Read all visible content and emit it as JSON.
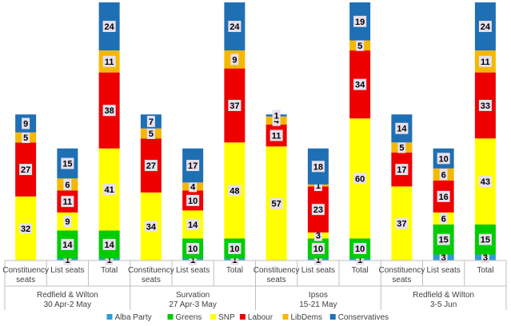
{
  "chart_data": {
    "type": "bar",
    "stacked": true,
    "groups": [
      {
        "pollster": "Redfield & Wilton",
        "dates": "30 Apr-2 May"
      },
      {
        "pollster": "Survation",
        "dates": "27 Apr-3 May"
      },
      {
        "pollster": "Ipsos",
        "dates": "15-21 May"
      },
      {
        "pollster": "Redfield & Wilton",
        "dates": "3-5 Jun"
      }
    ],
    "categories": [
      "Constituency seats",
      "List seats",
      "Total"
    ],
    "category_lines": [
      [
        "Constituency",
        "seats"
      ],
      [
        "List seats"
      ],
      [
        "Total"
      ]
    ],
    "series": [
      {
        "name": "Alba Party",
        "color": "#2E9BD6",
        "values": [
          [
            0,
            1,
            1
          ],
          [
            0,
            1,
            1
          ],
          [
            0,
            1,
            1
          ],
          [
            0,
            3,
            3
          ]
        ]
      },
      {
        "name": "Greens",
        "color": "#00CC00",
        "values": [
          [
            0,
            14,
            14
          ],
          [
            0,
            10,
            10
          ],
          [
            0,
            10,
            10
          ],
          [
            0,
            15,
            15
          ]
        ]
      },
      {
        "name": "SNP",
        "color": "#FFFF00",
        "values": [
          [
            32,
            9,
            41
          ],
          [
            34,
            14,
            48
          ],
          [
            57,
            3,
            60
          ],
          [
            37,
            6,
            43
          ]
        ]
      },
      {
        "name": "Labour",
        "color": "#EE0000",
        "values": [
          [
            27,
            11,
            38
          ],
          [
            27,
            10,
            37
          ],
          [
            11,
            23,
            34
          ],
          [
            17,
            16,
            33
          ]
        ]
      },
      {
        "name": "LibDems",
        "color": "#F5B800",
        "values": [
          [
            5,
            6,
            11
          ],
          [
            5,
            4,
            9
          ],
          [
            4,
            1,
            5
          ],
          [
            5,
            6,
            11
          ]
        ]
      },
      {
        "name": "Conservatives",
        "color": "#1F6FB5",
        "values": [
          [
            9,
            15,
            24
          ],
          [
            7,
            17,
            24
          ],
          [
            1,
            18,
            19
          ],
          [
            14,
            10,
            24
          ]
        ]
      }
    ],
    "ylim": [
      0,
      129
    ],
    "legend_position": "bottom",
    "grid": false
  }
}
